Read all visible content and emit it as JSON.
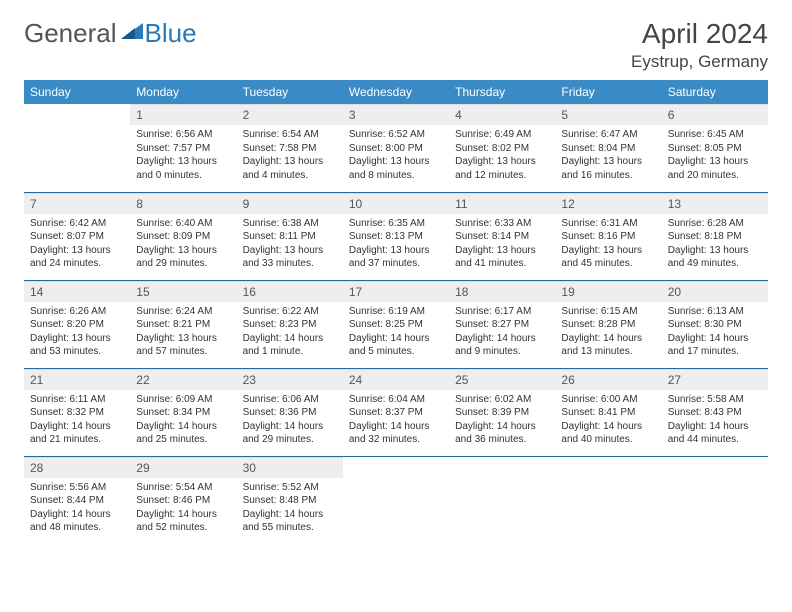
{
  "brand": {
    "word1": "General",
    "word2": "Blue"
  },
  "title": {
    "month": "April 2024",
    "location": "Eystrup, Germany"
  },
  "colors": {
    "header_bg": "#3a8ac5",
    "header_text": "#ffffff",
    "daynum_bg": "#eeeeee",
    "row_divider": "#2a6a9a",
    "brand_gray": "#555555",
    "brand_blue": "#2a7ab8",
    "body_text": "#333333"
  },
  "weekdays": [
    "Sunday",
    "Monday",
    "Tuesday",
    "Wednesday",
    "Thursday",
    "Friday",
    "Saturday"
  ],
  "weeks": [
    [
      {
        "n": "",
        "sr": "",
        "ss": "",
        "d1": "",
        "d2": ""
      },
      {
        "n": "1",
        "sr": "Sunrise: 6:56 AM",
        "ss": "Sunset: 7:57 PM",
        "d1": "Daylight: 13 hours",
        "d2": "and 0 minutes."
      },
      {
        "n": "2",
        "sr": "Sunrise: 6:54 AM",
        "ss": "Sunset: 7:58 PM",
        "d1": "Daylight: 13 hours",
        "d2": "and 4 minutes."
      },
      {
        "n": "3",
        "sr": "Sunrise: 6:52 AM",
        "ss": "Sunset: 8:00 PM",
        "d1": "Daylight: 13 hours",
        "d2": "and 8 minutes."
      },
      {
        "n": "4",
        "sr": "Sunrise: 6:49 AM",
        "ss": "Sunset: 8:02 PM",
        "d1": "Daylight: 13 hours",
        "d2": "and 12 minutes."
      },
      {
        "n": "5",
        "sr": "Sunrise: 6:47 AM",
        "ss": "Sunset: 8:04 PM",
        "d1": "Daylight: 13 hours",
        "d2": "and 16 minutes."
      },
      {
        "n": "6",
        "sr": "Sunrise: 6:45 AM",
        "ss": "Sunset: 8:05 PM",
        "d1": "Daylight: 13 hours",
        "d2": "and 20 minutes."
      }
    ],
    [
      {
        "n": "7",
        "sr": "Sunrise: 6:42 AM",
        "ss": "Sunset: 8:07 PM",
        "d1": "Daylight: 13 hours",
        "d2": "and 24 minutes."
      },
      {
        "n": "8",
        "sr": "Sunrise: 6:40 AM",
        "ss": "Sunset: 8:09 PM",
        "d1": "Daylight: 13 hours",
        "d2": "and 29 minutes."
      },
      {
        "n": "9",
        "sr": "Sunrise: 6:38 AM",
        "ss": "Sunset: 8:11 PM",
        "d1": "Daylight: 13 hours",
        "d2": "and 33 minutes."
      },
      {
        "n": "10",
        "sr": "Sunrise: 6:35 AM",
        "ss": "Sunset: 8:13 PM",
        "d1": "Daylight: 13 hours",
        "d2": "and 37 minutes."
      },
      {
        "n": "11",
        "sr": "Sunrise: 6:33 AM",
        "ss": "Sunset: 8:14 PM",
        "d1": "Daylight: 13 hours",
        "d2": "and 41 minutes."
      },
      {
        "n": "12",
        "sr": "Sunrise: 6:31 AM",
        "ss": "Sunset: 8:16 PM",
        "d1": "Daylight: 13 hours",
        "d2": "and 45 minutes."
      },
      {
        "n": "13",
        "sr": "Sunrise: 6:28 AM",
        "ss": "Sunset: 8:18 PM",
        "d1": "Daylight: 13 hours",
        "d2": "and 49 minutes."
      }
    ],
    [
      {
        "n": "14",
        "sr": "Sunrise: 6:26 AM",
        "ss": "Sunset: 8:20 PM",
        "d1": "Daylight: 13 hours",
        "d2": "and 53 minutes."
      },
      {
        "n": "15",
        "sr": "Sunrise: 6:24 AM",
        "ss": "Sunset: 8:21 PM",
        "d1": "Daylight: 13 hours",
        "d2": "and 57 minutes."
      },
      {
        "n": "16",
        "sr": "Sunrise: 6:22 AM",
        "ss": "Sunset: 8:23 PM",
        "d1": "Daylight: 14 hours",
        "d2": "and 1 minute."
      },
      {
        "n": "17",
        "sr": "Sunrise: 6:19 AM",
        "ss": "Sunset: 8:25 PM",
        "d1": "Daylight: 14 hours",
        "d2": "and 5 minutes."
      },
      {
        "n": "18",
        "sr": "Sunrise: 6:17 AM",
        "ss": "Sunset: 8:27 PM",
        "d1": "Daylight: 14 hours",
        "d2": "and 9 minutes."
      },
      {
        "n": "19",
        "sr": "Sunrise: 6:15 AM",
        "ss": "Sunset: 8:28 PM",
        "d1": "Daylight: 14 hours",
        "d2": "and 13 minutes."
      },
      {
        "n": "20",
        "sr": "Sunrise: 6:13 AM",
        "ss": "Sunset: 8:30 PM",
        "d1": "Daylight: 14 hours",
        "d2": "and 17 minutes."
      }
    ],
    [
      {
        "n": "21",
        "sr": "Sunrise: 6:11 AM",
        "ss": "Sunset: 8:32 PM",
        "d1": "Daylight: 14 hours",
        "d2": "and 21 minutes."
      },
      {
        "n": "22",
        "sr": "Sunrise: 6:09 AM",
        "ss": "Sunset: 8:34 PM",
        "d1": "Daylight: 14 hours",
        "d2": "and 25 minutes."
      },
      {
        "n": "23",
        "sr": "Sunrise: 6:06 AM",
        "ss": "Sunset: 8:36 PM",
        "d1": "Daylight: 14 hours",
        "d2": "and 29 minutes."
      },
      {
        "n": "24",
        "sr": "Sunrise: 6:04 AM",
        "ss": "Sunset: 8:37 PM",
        "d1": "Daylight: 14 hours",
        "d2": "and 32 minutes."
      },
      {
        "n": "25",
        "sr": "Sunrise: 6:02 AM",
        "ss": "Sunset: 8:39 PM",
        "d1": "Daylight: 14 hours",
        "d2": "and 36 minutes."
      },
      {
        "n": "26",
        "sr": "Sunrise: 6:00 AM",
        "ss": "Sunset: 8:41 PM",
        "d1": "Daylight: 14 hours",
        "d2": "and 40 minutes."
      },
      {
        "n": "27",
        "sr": "Sunrise: 5:58 AM",
        "ss": "Sunset: 8:43 PM",
        "d1": "Daylight: 14 hours",
        "d2": "and 44 minutes."
      }
    ],
    [
      {
        "n": "28",
        "sr": "Sunrise: 5:56 AM",
        "ss": "Sunset: 8:44 PM",
        "d1": "Daylight: 14 hours",
        "d2": "and 48 minutes."
      },
      {
        "n": "29",
        "sr": "Sunrise: 5:54 AM",
        "ss": "Sunset: 8:46 PM",
        "d1": "Daylight: 14 hours",
        "d2": "and 52 minutes."
      },
      {
        "n": "30",
        "sr": "Sunrise: 5:52 AM",
        "ss": "Sunset: 8:48 PM",
        "d1": "Daylight: 14 hours",
        "d2": "and 55 minutes."
      },
      {
        "n": "",
        "sr": "",
        "ss": "",
        "d1": "",
        "d2": ""
      },
      {
        "n": "",
        "sr": "",
        "ss": "",
        "d1": "",
        "d2": ""
      },
      {
        "n": "",
        "sr": "",
        "ss": "",
        "d1": "",
        "d2": ""
      },
      {
        "n": "",
        "sr": "",
        "ss": "",
        "d1": "",
        "d2": ""
      }
    ]
  ]
}
